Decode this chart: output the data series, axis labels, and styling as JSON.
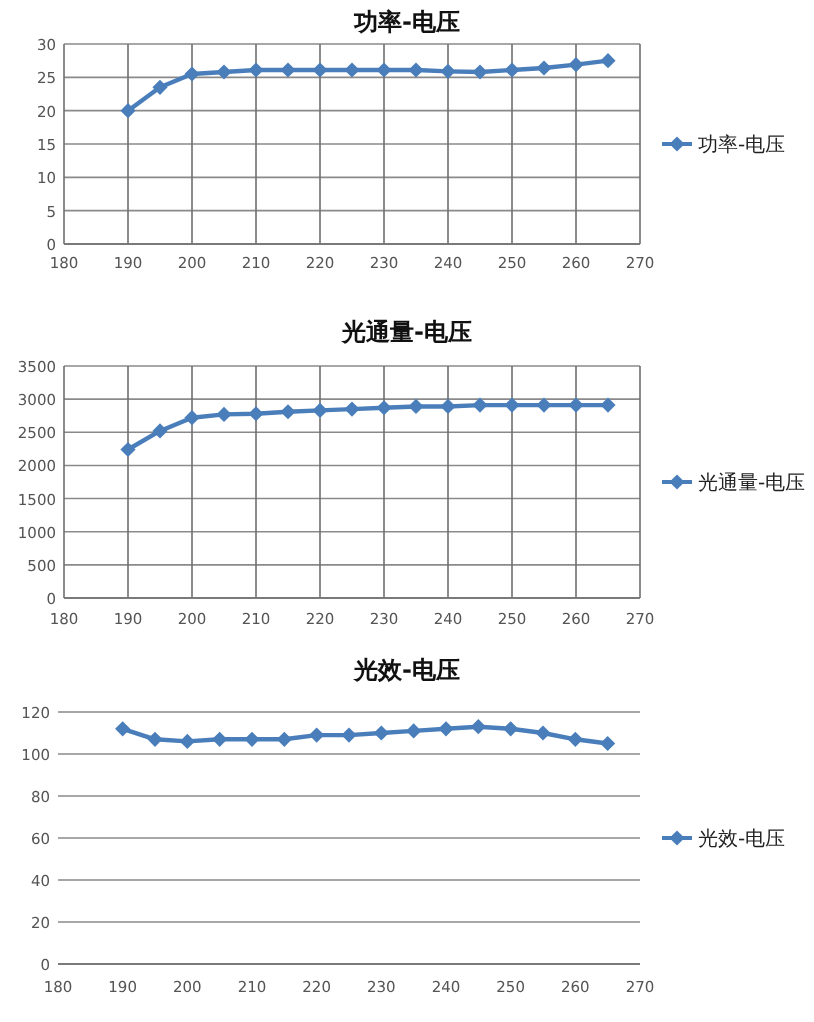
{
  "chart_data": [
    {
      "type": "line",
      "title": "功率-电压",
      "x": [
        190,
        195,
        200,
        205,
        210,
        215,
        220,
        225,
        230,
        235,
        240,
        245,
        250,
        255,
        260,
        265
      ],
      "series": [
        {
          "name": "功率-电压",
          "color": "#4a7ebb",
          "values": [
            20,
            23.5,
            25.5,
            25.8,
            26.1,
            26.1,
            26.1,
            26.1,
            26.1,
            26.1,
            25.9,
            25.8,
            26.1,
            26.4,
            26.9,
            27.5
          ]
        }
      ],
      "xlim": [
        180,
        270
      ],
      "xticks": [
        180,
        190,
        200,
        210,
        220,
        230,
        240,
        250,
        260,
        270
      ],
      "ylim": [
        0,
        30
      ],
      "yticks": [
        0,
        5,
        10,
        15,
        20,
        25,
        30
      ],
      "grid": true,
      "legend": "right",
      "marker": "diamond"
    },
    {
      "type": "line",
      "title": "光通量-电压",
      "x": [
        190,
        195,
        200,
        205,
        210,
        215,
        220,
        225,
        230,
        235,
        240,
        245,
        250,
        255,
        260,
        265
      ],
      "series": [
        {
          "name": "光通量-电压",
          "color": "#4a7ebb",
          "values": [
            2240,
            2520,
            2720,
            2770,
            2780,
            2810,
            2830,
            2850,
            2870,
            2890,
            2890,
            2910,
            2910,
            2910,
            2910,
            2910
          ]
        }
      ],
      "xlim": [
        180,
        270
      ],
      "xticks": [
        180,
        190,
        200,
        210,
        220,
        230,
        240,
        250,
        260,
        270
      ],
      "ylim": [
        0,
        3500
      ],
      "yticks": [
        0,
        500,
        1000,
        1500,
        2000,
        2500,
        3000,
        3500
      ],
      "grid": true,
      "legend": "right",
      "marker": "diamond"
    },
    {
      "type": "line",
      "title": "光效-电压",
      "x": [
        190,
        195,
        200,
        205,
        210,
        215,
        220,
        225,
        230,
        235,
        240,
        245,
        250,
        255,
        260,
        265
      ],
      "series": [
        {
          "name": "光效-电压",
          "color": "#4a7ebb",
          "values": [
            112,
            107,
            106,
            107,
            107,
            107,
            109,
            109,
            110,
            111,
            112,
            113,
            112,
            110,
            107,
            105
          ]
        }
      ],
      "xlim": [
        180,
        270
      ],
      "xticks": [
        180,
        190,
        200,
        210,
        220,
        230,
        240,
        250,
        260,
        270
      ],
      "ylim": [
        0,
        120
      ],
      "yticks": [
        0,
        20,
        40,
        60,
        80,
        100,
        120
      ],
      "grid": "y",
      "legend": "right",
      "marker": "diamond"
    }
  ]
}
